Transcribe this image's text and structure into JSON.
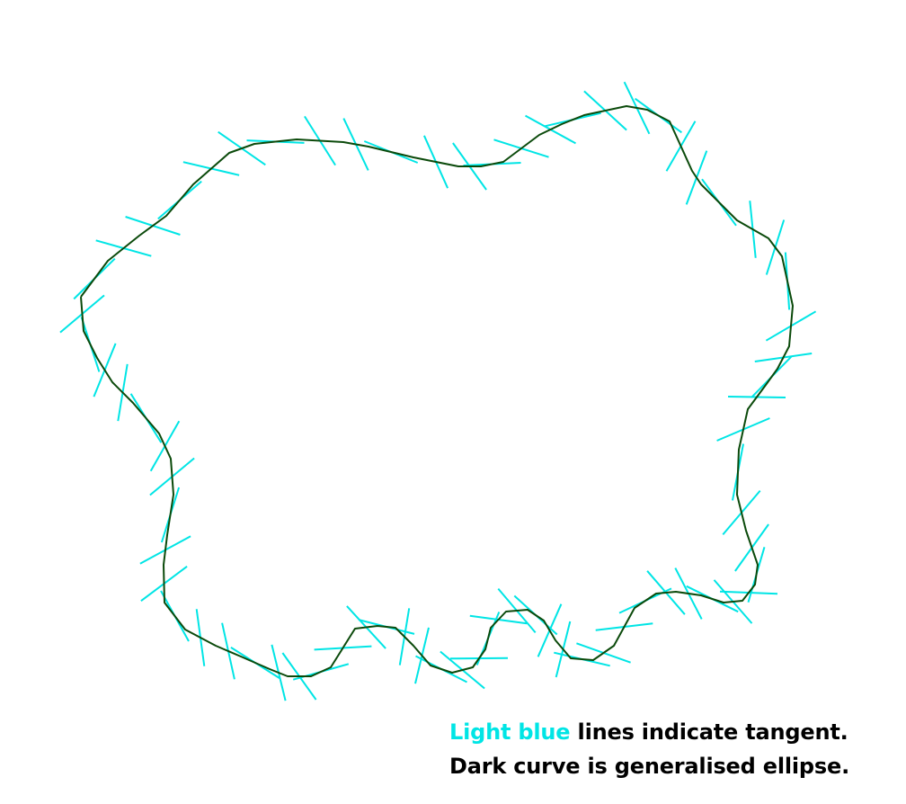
{
  "colors": {
    "background": "#ffffff",
    "curve": "#0b4a0b",
    "tangent": "#00e5e5",
    "text": "#000000"
  },
  "legend": {
    "line1_highlight": "Light blue",
    "line1_rest": " lines indicate tangent.",
    "line2": "Dark curve is generalised ellipse."
  }
}
